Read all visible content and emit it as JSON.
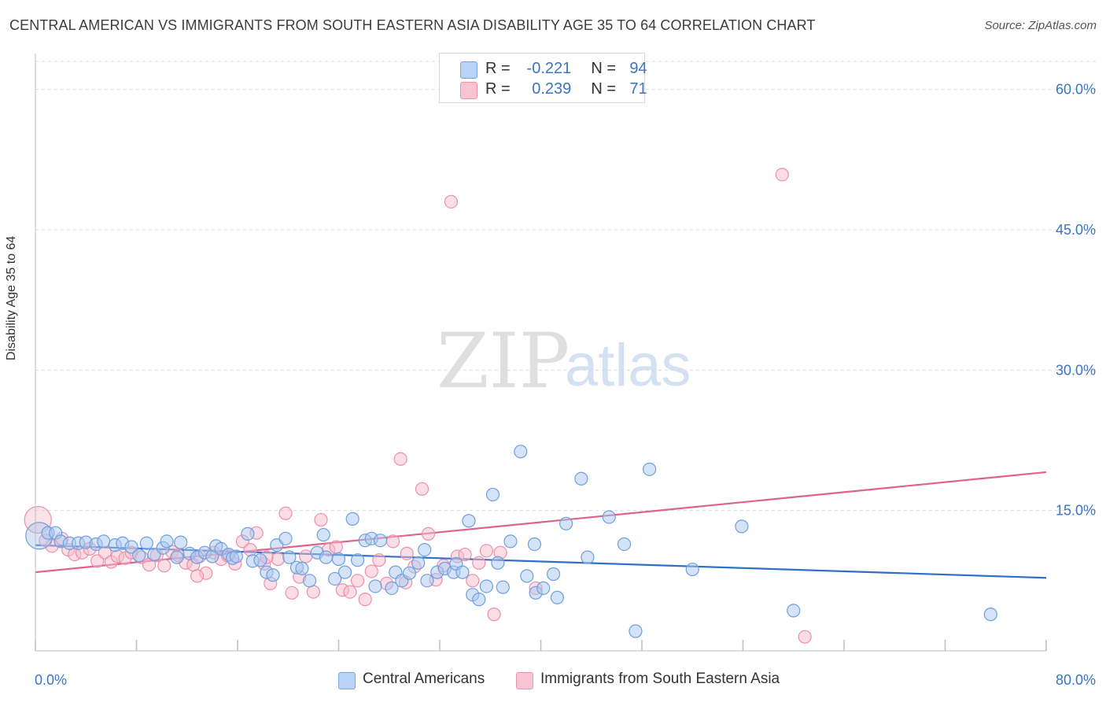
{
  "title": "CENTRAL AMERICAN VS IMMIGRANTS FROM SOUTH EASTERN ASIA DISABILITY AGE 35 TO 64 CORRELATION CHART",
  "source": "Source: ZipAtlas.com",
  "watermark": {
    "zip": "ZIP",
    "atlas": "atlas"
  },
  "legend": {
    "rows": [
      {
        "r_label": "R =",
        "r_value": "-0.221",
        "n_label": "N =",
        "n_value": "94"
      },
      {
        "r_label": "R =",
        "r_value": "0.239",
        "n_label": "N =",
        "n_value": "71"
      }
    ]
  },
  "bottom_legend": {
    "series1": "Central Americans",
    "series2": "Immigrants from South Eastern Asia"
  },
  "colors": {
    "blue_fill": "#a9c8f0",
    "blue_stroke": "#6f9fdc",
    "blue_line": "#3270c8",
    "pink_fill": "#f7bccd",
    "pink_stroke": "#ec8fab",
    "pink_line": "#e0628d",
    "axis_text": "#3a75c4"
  },
  "chart_data": {
    "type": "scatter",
    "title": "CENTRAL AMERICAN VS IMMIGRANTS FROM SOUTH EASTERN ASIA DISABILITY AGE 35 TO 64 CORRELATION CHART",
    "xlabel": "",
    "ylabel": "Disability Age 35 to 64",
    "xlim": [
      0,
      80
    ],
    "ylim": [
      0,
      63
    ],
    "x_tick_labels": [
      "0.0%",
      "80.0%"
    ],
    "y_ticks": [
      15,
      30,
      45,
      60
    ],
    "y_tick_labels": [
      "15.0%",
      "30.0%",
      "45.0%",
      "60.0%"
    ],
    "series": [
      {
        "name": "Central Americans",
        "r": -0.221,
        "n": 94,
        "trend": {
          "x": [
            0,
            80
          ],
          "y": [
            11.3,
            7.8
          ]
        },
        "points": [
          [
            0.3,
            12.3,
            "L"
          ],
          [
            1.0,
            12.6
          ],
          [
            1.6,
            12.6
          ],
          [
            2.0,
            11.7
          ],
          [
            2.7,
            11.5
          ],
          [
            3.4,
            11.5
          ],
          [
            4.0,
            11.6
          ],
          [
            4.8,
            11.4
          ],
          [
            5.4,
            11.7
          ],
          [
            6.3,
            11.3
          ],
          [
            6.9,
            11.5
          ],
          [
            7.6,
            11.1
          ],
          [
            8.2,
            10.2
          ],
          [
            8.8,
            11.5
          ],
          [
            9.4,
            10.3
          ],
          [
            10.1,
            11.0
          ],
          [
            10.4,
            11.7
          ],
          [
            11.2,
            10.0
          ],
          [
            11.5,
            11.6
          ],
          [
            12.2,
            10.4
          ],
          [
            12.8,
            10.0
          ],
          [
            13.4,
            10.5
          ],
          [
            14.0,
            10.1
          ],
          [
            14.3,
            11.2
          ],
          [
            14.7,
            10.9
          ],
          [
            15.3,
            10.3
          ],
          [
            15.6,
            9.9
          ],
          [
            15.9,
            10.1
          ],
          [
            16.8,
            12.5
          ],
          [
            17.2,
            9.6
          ],
          [
            17.8,
            9.7
          ],
          [
            18.3,
            8.4
          ],
          [
            18.8,
            8.1
          ],
          [
            19.1,
            11.3
          ],
          [
            19.8,
            12.0
          ],
          [
            20.1,
            10.0
          ],
          [
            20.7,
            8.9
          ],
          [
            21.1,
            8.8
          ],
          [
            21.7,
            7.5
          ],
          [
            22.3,
            10.5
          ],
          [
            22.8,
            12.4
          ],
          [
            23.0,
            10.0
          ],
          [
            23.7,
            7.7
          ],
          [
            24.0,
            9.8
          ],
          [
            24.5,
            8.4
          ],
          [
            25.1,
            14.1
          ],
          [
            25.5,
            9.7
          ],
          [
            26.1,
            11.8
          ],
          [
            26.6,
            12.0
          ],
          [
            26.9,
            6.9
          ],
          [
            27.3,
            11.8
          ],
          [
            28.2,
            6.7
          ],
          [
            28.5,
            8.4
          ],
          [
            29.0,
            7.5
          ],
          [
            29.6,
            8.3
          ],
          [
            30.3,
            9.4
          ],
          [
            30.8,
            10.8
          ],
          [
            31.0,
            7.5
          ],
          [
            31.8,
            8.4
          ],
          [
            32.4,
            8.8
          ],
          [
            33.1,
            8.4
          ],
          [
            33.3,
            9.3
          ],
          [
            33.8,
            8.4
          ],
          [
            34.3,
            13.9
          ],
          [
            34.6,
            6.0
          ],
          [
            35.1,
            5.5
          ],
          [
            35.7,
            6.9
          ],
          [
            36.2,
            16.7
          ],
          [
            36.6,
            9.4
          ],
          [
            37.0,
            6.8
          ],
          [
            37.6,
            11.7
          ],
          [
            38.4,
            21.3
          ],
          [
            38.9,
            8.0
          ],
          [
            39.5,
            11.4
          ],
          [
            39.6,
            6.2
          ],
          [
            40.2,
            6.7
          ],
          [
            41.0,
            8.2
          ],
          [
            41.3,
            5.7
          ],
          [
            42.0,
            13.6
          ],
          [
            43.2,
            18.4
          ],
          [
            43.7,
            10.0
          ],
          [
            45.4,
            14.3
          ],
          [
            46.6,
            11.4
          ],
          [
            48.6,
            19.4
          ],
          [
            52.0,
            8.7
          ],
          [
            55.9,
            13.3
          ],
          [
            60.0,
            4.3
          ],
          [
            75.6,
            3.9
          ],
          [
            47.5,
            2.1
          ]
        ]
      },
      {
        "name": "Immigrants from South Eastern Asia",
        "r": 0.239,
        "n": 71,
        "trend": {
          "x": [
            0,
            80
          ],
          "y": [
            8.4,
            19.1
          ]
        },
        "points": [
          [
            0.2,
            14.0,
            "L"
          ],
          [
            0.8,
            11.8
          ],
          [
            1.3,
            11.2
          ],
          [
            2.1,
            12.0
          ],
          [
            2.6,
            10.8
          ],
          [
            3.1,
            10.3
          ],
          [
            3.7,
            10.5
          ],
          [
            4.3,
            10.9
          ],
          [
            4.9,
            9.6
          ],
          [
            5.5,
            10.5
          ],
          [
            6.0,
            9.5
          ],
          [
            6.5,
            10.1
          ],
          [
            7.1,
            9.9
          ],
          [
            7.6,
            10.5
          ],
          [
            8.4,
            10.0
          ],
          [
            9.0,
            9.2
          ],
          [
            9.6,
            10.2
          ],
          [
            10.2,
            9.1
          ],
          [
            10.8,
            10.6
          ],
          [
            11.3,
            10.2
          ],
          [
            11.9,
            9.4
          ],
          [
            12.5,
            9.2
          ],
          [
            13.0,
            10.1
          ],
          [
            13.5,
            8.3
          ],
          [
            14.1,
            10.5
          ],
          [
            14.7,
            9.8
          ],
          [
            15.2,
            10.2
          ],
          [
            15.8,
            9.3
          ],
          [
            16.4,
            11.7
          ],
          [
            17.0,
            10.8
          ],
          [
            17.5,
            12.6
          ],
          [
            18.1,
            9.3
          ],
          [
            18.6,
            7.2
          ],
          [
            19.2,
            9.8
          ],
          [
            19.8,
            14.7
          ],
          [
            20.3,
            6.2
          ],
          [
            20.9,
            7.9
          ],
          [
            21.4,
            10.1
          ],
          [
            22.0,
            6.3
          ],
          [
            22.6,
            14.0
          ],
          [
            23.2,
            10.8
          ],
          [
            23.8,
            11.1
          ],
          [
            24.3,
            6.5
          ],
          [
            24.9,
            6.3
          ],
          [
            25.5,
            7.5
          ],
          [
            26.1,
            5.5
          ],
          [
            26.6,
            8.5
          ],
          [
            27.2,
            9.7
          ],
          [
            27.8,
            7.2
          ],
          [
            28.3,
            11.7
          ],
          [
            28.9,
            20.5
          ],
          [
            29.4,
            10.4
          ],
          [
            30.0,
            9.0
          ],
          [
            30.6,
            17.3
          ],
          [
            31.1,
            12.5
          ],
          [
            31.7,
            7.6
          ],
          [
            32.3,
            9.1
          ],
          [
            32.9,
            48.0
          ],
          [
            33.4,
            10.1
          ],
          [
            34.0,
            10.3
          ],
          [
            34.6,
            7.5
          ],
          [
            35.1,
            9.4
          ],
          [
            35.7,
            10.7
          ],
          [
            36.3,
            3.9
          ],
          [
            39.6,
            6.7
          ],
          [
            59.1,
            50.9
          ],
          [
            60.9,
            1.5
          ],
          [
            29.3,
            7.3
          ],
          [
            18.3,
            10.0
          ],
          [
            12.8,
            8.0
          ],
          [
            36.8,
            10.5
          ]
        ]
      }
    ]
  }
}
